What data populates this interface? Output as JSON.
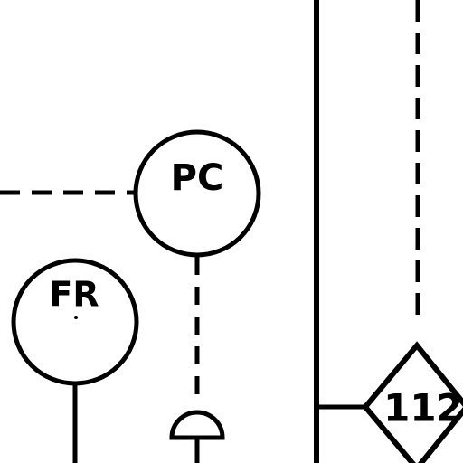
{
  "diagram": {
    "instruments": [
      {
        "tag": "PC"
      },
      {
        "tag": "FR"
      }
    ],
    "diamond_label": "112"
  },
  "colors": {
    "line": "#000000",
    "background": "#ffffff"
  }
}
